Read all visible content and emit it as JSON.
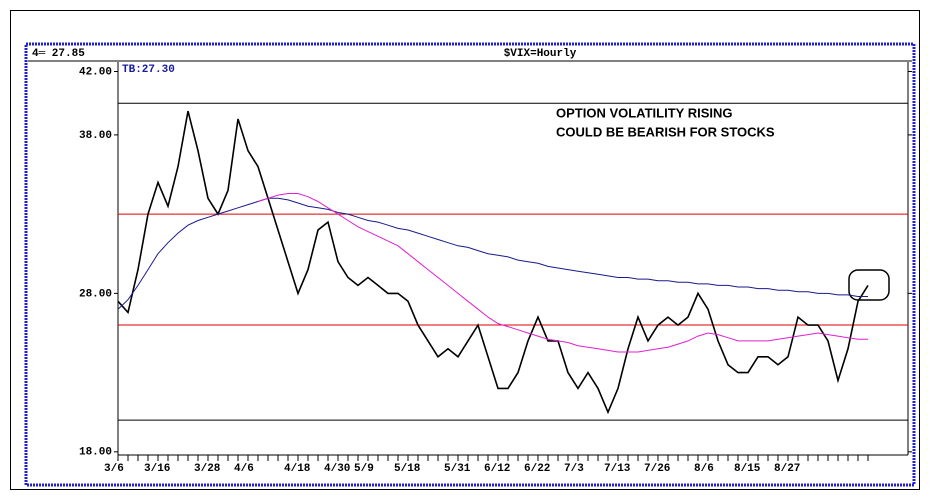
{
  "chart_data": {
    "type": "line",
    "header_left": "4═ 27.85",
    "title": "$VIX=Hourly",
    "subtitle": "TB:27.30",
    "annotations": [
      "OPTION VOLATILITY RISING",
      "COULD BE BEARISH FOR STOCKS"
    ],
    "categories": [
      "3/6",
      null,
      null,
      null,
      "3/16",
      null,
      null,
      null,
      null,
      "3/28",
      null,
      null,
      null,
      "4/6",
      null,
      null,
      null,
      null,
      "4/18",
      null,
      null,
      null,
      "4/30",
      null,
      null,
      "5/9",
      null,
      null,
      null,
      "5/18",
      null,
      null,
      null,
      null,
      "5/31",
      null,
      null,
      null,
      "6/12",
      null,
      null,
      null,
      "6/22",
      null,
      null,
      null,
      "7/3",
      null,
      null,
      null,
      "7/13",
      null,
      null,
      null,
      "7/26",
      null,
      null,
      null,
      null,
      "8/6",
      null,
      null,
      null,
      "8/15",
      null,
      null,
      null,
      "8/27",
      null,
      null,
      null,
      null,
      null,
      null,
      null,
      null
    ],
    "series": [
      {
        "color": "#000000",
        "values": [
          27.5,
          26.8,
          29.5,
          33,
          35,
          33.5,
          36,
          39.5,
          37,
          34,
          33,
          34.5,
          39,
          37,
          36,
          34,
          32,
          30,
          28,
          29.5,
          32,
          32.5,
          30,
          29,
          28.5,
          29,
          28.5,
          28,
          28,
          27.5,
          26,
          25,
          24,
          24.5,
          24,
          25,
          26,
          24,
          22,
          22,
          23,
          25,
          26.5,
          25,
          25,
          23,
          22,
          23,
          22,
          20.5,
          22,
          24.5,
          26.5,
          25,
          26,
          26.5,
          26,
          26.5,
          28,
          27,
          25,
          23.5,
          23,
          23,
          24,
          24,
          23.5,
          24,
          26.5,
          26,
          26,
          25,
          22.5,
          24.5,
          27.5,
          28.5
        ]
      },
      {
        "color": "#1a1a8c",
        "values": [
          27,
          27.6,
          28.5,
          29.5,
          30.5,
          31.2,
          31.8,
          32.3,
          32.6,
          32.8,
          33.0,
          33.2,
          33.4,
          33.6,
          33.8,
          34.0,
          34.0,
          33.9,
          33.7,
          33.5,
          33.4,
          33.3,
          33.1,
          33.0,
          32.8,
          32.6,
          32.5,
          32.3,
          32.1,
          32.0,
          31.8,
          31.6,
          31.4,
          31.2,
          31.0,
          30.9,
          30.7,
          30.5,
          30.4,
          30.3,
          30.1,
          30.0,
          29.9,
          29.7,
          29.6,
          29.5,
          29.4,
          29.3,
          29.2,
          29.1,
          29.0,
          29.0,
          28.9,
          28.9,
          28.8,
          28.8,
          28.7,
          28.7,
          28.6,
          28.6,
          28.5,
          28.5,
          28.4,
          28.4,
          28.3,
          28.3,
          28.2,
          28.2,
          28.1,
          28.1,
          28.0,
          28.0,
          27.9,
          27.9,
          27.8,
          27.8
        ]
      },
      {
        "color": "#e020d0",
        "values": [
          null,
          null,
          null,
          null,
          null,
          null,
          null,
          null,
          null,
          null,
          null,
          null,
          null,
          null,
          33.8,
          34.0,
          34.2,
          34.3,
          34.3,
          34.1,
          33.8,
          33.4,
          33.0,
          32.6,
          32.2,
          31.9,
          31.6,
          31.3,
          31.0,
          30.5,
          30.0,
          29.5,
          29.0,
          28.5,
          28.0,
          27.5,
          27.0,
          26.5,
          26.1,
          25.9,
          25.7,
          25.5,
          25.3,
          25.1,
          25.0,
          24.9,
          24.7,
          24.6,
          24.5,
          24.4,
          24.3,
          24.3,
          24.3,
          24.4,
          24.5,
          24.6,
          24.8,
          25.0,
          25.3,
          25.5,
          25.4,
          25.2,
          25.0,
          25.0,
          25.0,
          25.0,
          25.1,
          25.2,
          25.3,
          25.4,
          25.5,
          25.4,
          25.3,
          25.2,
          25.1,
          25.1
        ]
      }
    ],
    "hlines": [
      {
        "value": 40,
        "color": "#000000"
      },
      {
        "value": 33,
        "color": "#e00000"
      },
      {
        "value": 26,
        "color": "#e00000"
      },
      {
        "value": 20,
        "color": "#000000"
      }
    ],
    "ylim": [
      17.8,
      42.6
    ],
    "yticks": [
      {
        "value": 18,
        "label": "18.00"
      },
      {
        "value": 28,
        "label": "28.00"
      },
      {
        "value": 38,
        "label": "38.00"
      },
      {
        "value": 42,
        "label": "42.00"
      }
    ]
  }
}
